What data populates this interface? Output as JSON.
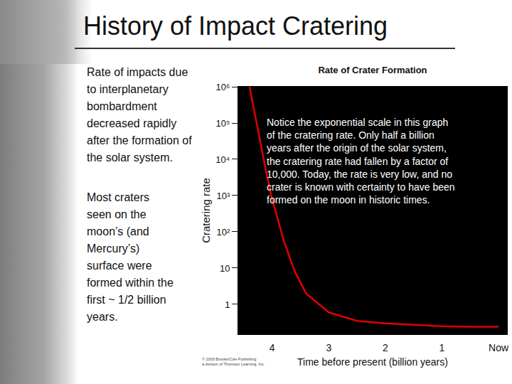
{
  "slide": {
    "title": "History of Impact Cratering",
    "paragraphs": [
      [
        "Rate of impacts due",
        "to interplanetary",
        "bombardment",
        "decreased rapidly",
        "after the formation of",
        "the solar system."
      ],
      [
        "Most craters",
        "seen on the",
        "moon’s (and",
        "Mercury’s)",
        "surface were",
        "formed within the",
        "first ~ 1/2 billion",
        "years."
      ]
    ]
  },
  "chart_data": {
    "type": "line",
    "title": "Rate of Crater Formation",
    "x_label": "Time before present (billion years)",
    "y_label": "Cratering rate",
    "x": [
      4.4,
      4.3,
      4.2,
      4.1,
      4.0,
      3.8,
      3.6,
      3.4,
      3.0,
      2.5,
      2.0,
      1.5,
      1.0,
      0.5,
      0.0
    ],
    "values": [
      1000000,
      150000,
      25000,
      4000,
      800,
      60,
      8,
      2,
      0.6,
      0.35,
      0.3,
      0.27,
      0.25,
      0.24,
      0.24
    ],
    "color": "#e00000",
    "log": "y",
    "grid": false,
    "xlim": [
      4.6,
      -0.15
    ],
    "xticks": [
      4,
      3,
      2,
      1,
      {
        "value": 0,
        "label": "Now"
      }
    ],
    "ylim": [
      0.15,
      1000000
    ],
    "yticks": [
      1,
      10,
      {
        "value": 100,
        "label": "10²"
      },
      {
        "value": 1000,
        "label": "10³"
      },
      {
        "value": 10000,
        "label": "10⁴"
      },
      {
        "value": 100000,
        "label": "10⁵"
      },
      {
        "value": 1000000,
        "label": "10⁶"
      }
    ],
    "annotations": [
      {
        "text": [
          "Notice the exponential scale in this graph",
          "of the cratering rate. Only half a billion",
          "years after the origin of the solar system,",
          "the cratering rate had fallen by a factor of",
          "10,000. Today, the rate is very low, and no",
          "crater is known with certainty to have been",
          "formed on the moon in historic times."
        ]
      }
    ],
    "credit": [
      "© 2003 Brooks/Cole Publishing",
      "a division of Thomson Learning, Inc."
    ]
  }
}
